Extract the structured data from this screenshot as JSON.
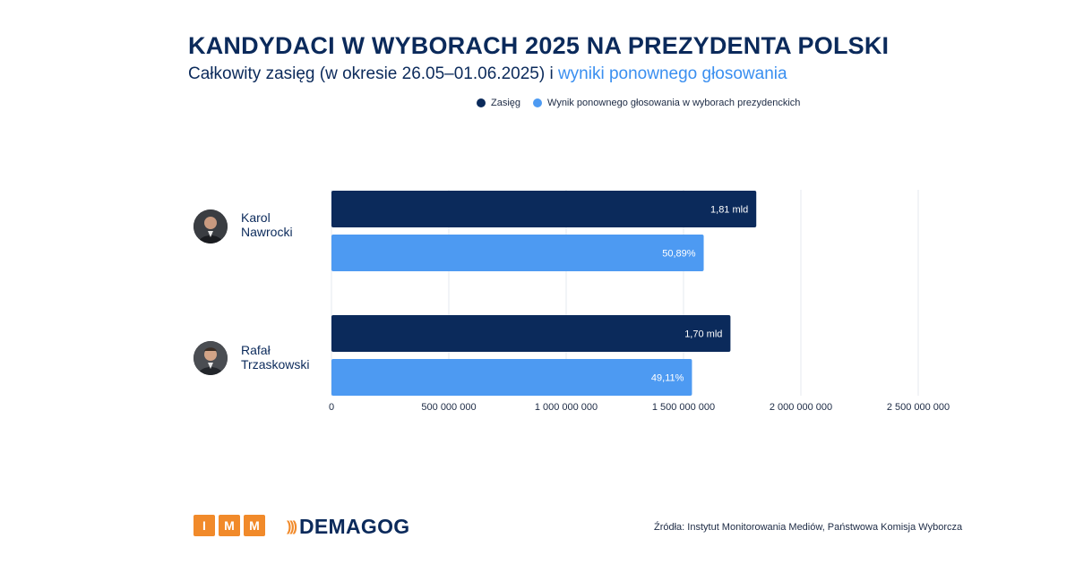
{
  "header": {
    "title": "KANDYDACI W WYBORACH 2025 NA PREZYDENTA POLSKI",
    "subtitle_part1": "Całkowity zasięg (w okresie 26.05–01.06.2025) i ",
    "subtitle_part2": "wyniki ponownego głosowania"
  },
  "legend": [
    {
      "label": "Zasięg",
      "color": "#0b2a5b"
    },
    {
      "label": "Wynik ponownego głosowania w wyborach prezydenckich",
      "color": "#4d9af2"
    }
  ],
  "candidates": [
    {
      "first": "Karol",
      "last": "Nawrocki",
      "avatar_icon": "person-photo-icon"
    },
    {
      "first": "Rafał",
      "last": "Trzaskowski",
      "avatar_icon": "person-photo-icon"
    }
  ],
  "chart_data": {
    "type": "bar",
    "orientation": "horizontal",
    "categories": [
      "Karol Nawrocki",
      "Rafał Trzaskowski"
    ],
    "series": [
      {
        "name": "Zasięg",
        "color": "#0b2a5b",
        "values": [
          1810000000,
          1700000000
        ],
        "labels": [
          "1,81 mld",
          "1,70 mld"
        ]
      },
      {
        "name": "Wynik ponownego głosowania w wyborach prezydenckich",
        "color": "#4d9af2",
        "values": [
          1586000000,
          1536000000
        ],
        "labels": [
          "50,89%",
          "49,11%"
        ]
      }
    ],
    "xlim": [
      0,
      2500000000
    ],
    "xticks": [
      0,
      500000000,
      1000000000,
      1500000000,
      2000000000,
      2500000000
    ],
    "xtick_labels": [
      "0",
      "500 000 000",
      "1 000 000 000",
      "1 500 000 000",
      "2 000 000 000",
      "2 500 000 000"
    ],
    "grid": true,
    "legend_position": "top"
  },
  "footer": {
    "logo_imm": [
      "I",
      "M",
      "M"
    ],
    "logo_demagog_mark": ")))",
    "logo_demagog": "DEMAGOG",
    "source": "Źródła: Instytut Monitorowania Mediów, Państwowa Komisja Wyborcza"
  }
}
